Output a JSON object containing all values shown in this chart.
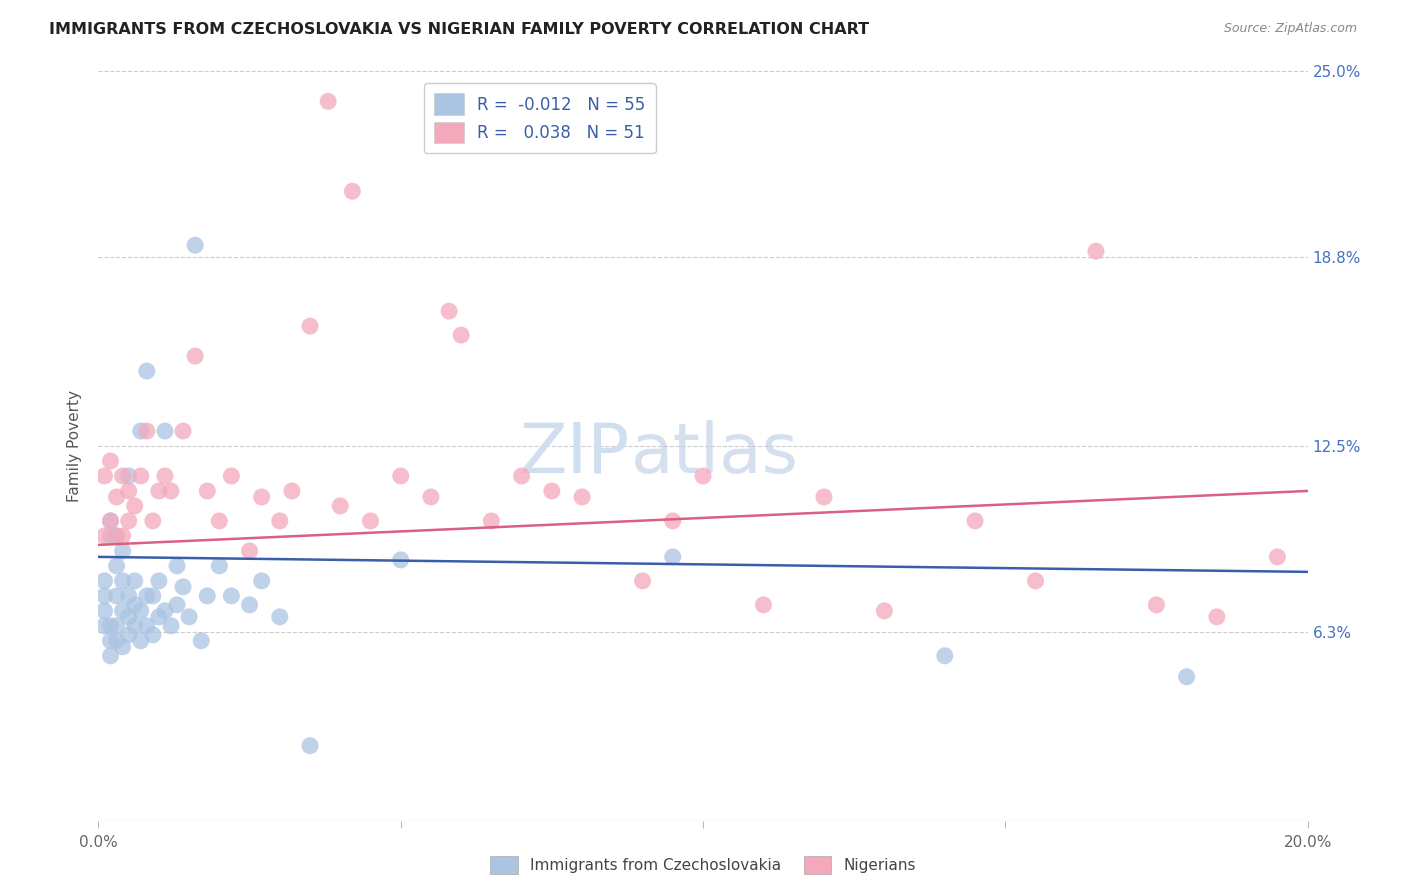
{
  "title": "IMMIGRANTS FROM CZECHOSLOVAKIA VS NIGERIAN FAMILY POVERTY CORRELATION CHART",
  "source": "Source: ZipAtlas.com",
  "ylabel": "Family Poverty",
  "x_min": 0.0,
  "x_max": 0.2,
  "y_min": 0.0,
  "y_max": 0.25,
  "color_blue": "#aac4e2",
  "color_pink": "#f4a8bc",
  "line_blue": "#3a5fa8",
  "line_pink": "#d96080",
  "watermark_color": "#d0dff0",
  "blue_line_y0": 0.088,
  "blue_line_y1": 0.083,
  "pink_line_y0": 0.092,
  "pink_line_y1": 0.11,
  "blue_scatter_x": [
    0.001,
    0.001,
    0.001,
    0.001,
    0.002,
    0.002,
    0.002,
    0.002,
    0.002,
    0.003,
    0.003,
    0.003,
    0.003,
    0.003,
    0.004,
    0.004,
    0.004,
    0.004,
    0.005,
    0.005,
    0.005,
    0.005,
    0.006,
    0.006,
    0.006,
    0.007,
    0.007,
    0.007,
    0.008,
    0.008,
    0.008,
    0.009,
    0.009,
    0.01,
    0.01,
    0.011,
    0.011,
    0.012,
    0.013,
    0.013,
    0.014,
    0.015,
    0.016,
    0.017,
    0.018,
    0.02,
    0.022,
    0.025,
    0.027,
    0.03,
    0.035,
    0.05,
    0.095,
    0.14,
    0.18
  ],
  "blue_scatter_y": [
    0.065,
    0.07,
    0.075,
    0.08,
    0.055,
    0.06,
    0.065,
    0.095,
    0.1,
    0.06,
    0.065,
    0.075,
    0.085,
    0.095,
    0.058,
    0.07,
    0.08,
    0.09,
    0.062,
    0.068,
    0.075,
    0.115,
    0.065,
    0.072,
    0.08,
    0.06,
    0.07,
    0.13,
    0.065,
    0.075,
    0.15,
    0.062,
    0.075,
    0.068,
    0.08,
    0.07,
    0.13,
    0.065,
    0.072,
    0.085,
    0.078,
    0.068,
    0.192,
    0.06,
    0.075,
    0.085,
    0.075,
    0.072,
    0.08,
    0.068,
    0.025,
    0.087,
    0.088,
    0.055,
    0.048
  ],
  "pink_scatter_x": [
    0.001,
    0.001,
    0.002,
    0.002,
    0.003,
    0.003,
    0.004,
    0.004,
    0.005,
    0.005,
    0.006,
    0.007,
    0.008,
    0.009,
    0.01,
    0.011,
    0.012,
    0.014,
    0.016,
    0.018,
    0.02,
    0.022,
    0.025,
    0.027,
    0.03,
    0.032,
    0.035,
    0.038,
    0.04,
    0.042,
    0.045,
    0.05,
    0.055,
    0.058,
    0.06,
    0.065,
    0.07,
    0.075,
    0.08,
    0.09,
    0.095,
    0.1,
    0.11,
    0.12,
    0.13,
    0.145,
    0.155,
    0.165,
    0.175,
    0.185,
    0.195
  ],
  "pink_scatter_y": [
    0.095,
    0.115,
    0.1,
    0.12,
    0.095,
    0.108,
    0.095,
    0.115,
    0.1,
    0.11,
    0.105,
    0.115,
    0.13,
    0.1,
    0.11,
    0.115,
    0.11,
    0.13,
    0.155,
    0.11,
    0.1,
    0.115,
    0.09,
    0.108,
    0.1,
    0.11,
    0.165,
    0.24,
    0.105,
    0.21,
    0.1,
    0.115,
    0.108,
    0.17,
    0.162,
    0.1,
    0.115,
    0.11,
    0.108,
    0.08,
    0.1,
    0.115,
    0.072,
    0.108,
    0.07,
    0.1,
    0.08,
    0.19,
    0.072,
    0.068,
    0.088
  ]
}
